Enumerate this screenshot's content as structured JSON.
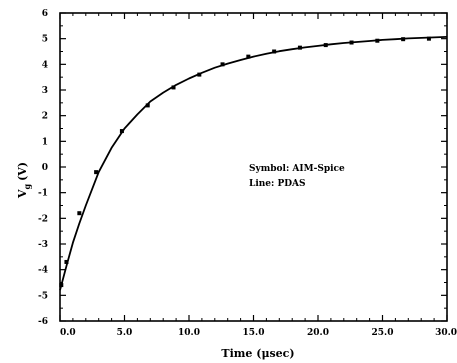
{
  "chart_data": {
    "type": "scatter",
    "xlabel": "Time (μsec)",
    "ylabel": "V",
    "ylabel_sub": "g",
    "ylabel_unit": "(V)",
    "xlim": [
      0,
      30
    ],
    "ylim": [
      -6,
      6
    ],
    "x_ticks": [
      "0.0",
      "5.0",
      "10.0",
      "15.0",
      "20.0",
      "25.0",
      "30.0"
    ],
    "y_ticks": [
      "-6",
      "-5",
      "-4",
      "-3",
      "-2",
      "-1",
      "0",
      "1",
      "2",
      "3",
      "4",
      "5",
      "6"
    ],
    "grid": false,
    "annotations": [
      "Symbol: AIM-Spice",
      "Line: PDAS"
    ],
    "series": [
      {
        "name": "AIM-Spice",
        "style": "markers",
        "x": [
          0.1,
          0.5,
          1.5,
          2.8,
          4.8,
          6.8,
          8.8,
          10.8,
          12.6,
          14.6,
          16.6,
          18.6,
          20.6,
          22.6,
          24.6,
          26.6,
          28.6
        ],
        "y": [
          -4.6,
          -3.7,
          -1.8,
          -0.2,
          1.4,
          2.4,
          3.1,
          3.6,
          4.0,
          4.3,
          4.5,
          4.65,
          4.75,
          4.85,
          4.92,
          4.98,
          5.0
        ]
      },
      {
        "name": "PDAS",
        "style": "line",
        "x": [
          0,
          0.5,
          1,
          1.5,
          2,
          3,
          4,
          5,
          6,
          7,
          8,
          9,
          10,
          11,
          12,
          13,
          14,
          15,
          16,
          17,
          18,
          19,
          20,
          21,
          22,
          23,
          24,
          25,
          26,
          27,
          28,
          29,
          30
        ],
        "y": [
          -4.8,
          -3.85,
          -2.95,
          -2.2,
          -1.5,
          -0.2,
          0.75,
          1.5,
          2.05,
          2.55,
          2.9,
          3.2,
          3.45,
          3.67,
          3.87,
          4.03,
          4.17,
          4.3,
          4.41,
          4.51,
          4.59,
          4.66,
          4.72,
          4.78,
          4.83,
          4.87,
          4.91,
          4.95,
          4.98,
          5.01,
          5.03,
          5.05,
          5.07
        ]
      }
    ]
  }
}
